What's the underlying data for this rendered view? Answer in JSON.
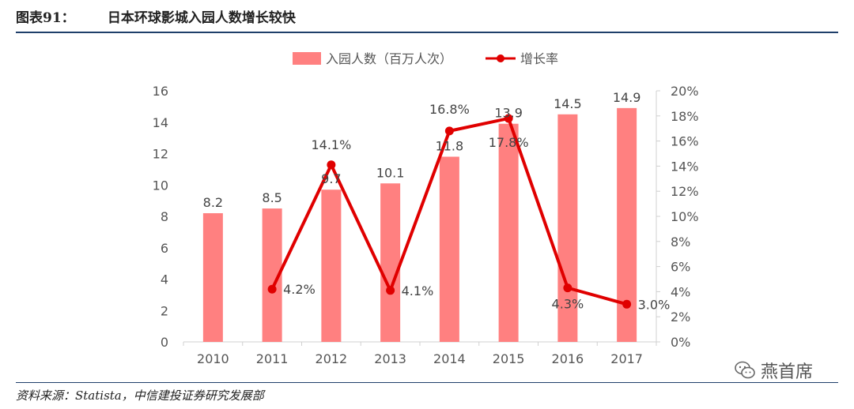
{
  "header": {
    "figure_number": "图表91：",
    "title": "日本环球影城入园人数增长较快"
  },
  "source": "资料来源：Statista，中信建投证券研究发展部",
  "watermark": {
    "icon": "wechat-icon",
    "text": "燕首席"
  },
  "colors": {
    "bar": "#ff8080",
    "line": "#e00000",
    "rule": "#1f3f6a",
    "axis": "#d0d0d0"
  },
  "chart_data": {
    "type": "bar",
    "categories": [
      "2010",
      "2011",
      "2012",
      "2013",
      "2014",
      "2015",
      "2016",
      "2017"
    ],
    "series": [
      {
        "name": "入园人数（百万人次）",
        "type": "bar",
        "axis": "left",
        "values": [
          8.2,
          8.5,
          9.7,
          10.1,
          11.8,
          13.9,
          14.5,
          14.9
        ],
        "labels": [
          "8.2",
          "8.5",
          "9.7",
          "10.1",
          "11.8",
          "13.9",
          "14.5",
          "14.9"
        ]
      },
      {
        "name": "增长率",
        "type": "line",
        "axis": "right",
        "values": [
          null,
          4.2,
          14.1,
          4.1,
          16.8,
          17.8,
          4.3,
          3.0
        ],
        "labels": [
          "",
          "4.2%",
          "14.1%",
          "4.1%",
          "16.8%",
          "17.8%",
          "4.3%",
          "3.0%"
        ]
      }
    ],
    "y_left": {
      "min": 0,
      "max": 16,
      "ticks": [
        "0",
        "2",
        "4",
        "6",
        "8",
        "10",
        "12",
        "14",
        "16"
      ]
    },
    "y_right": {
      "min": 0,
      "max": 20,
      "ticks": [
        "0%",
        "2%",
        "4%",
        "6%",
        "8%",
        "10%",
        "12%",
        "14%",
        "16%",
        "18%",
        "20%"
      ]
    },
    "legend": "top-center",
    "grid": false
  }
}
